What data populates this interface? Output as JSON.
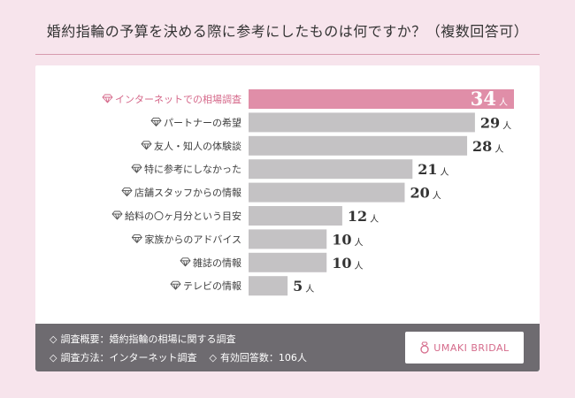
{
  "title": "婚約指輪の予算を決める際に参考にしたものは何ですか？（複数回答可）",
  "chart_data": {
    "type": "bar",
    "orientation": "horizontal",
    "categories": [
      "インターネットでの相場調査",
      "パートナーの希望",
      "友人・知人の体験談",
      "特に参考にしなかった",
      "店舗スタッフからの情報",
      "給料の〇ヶ月分という目安",
      "家族からのアドバイス",
      "雑誌の情報",
      "テレビの情報"
    ],
    "values": [
      34,
      29,
      28,
      21,
      20,
      12,
      10,
      10,
      5
    ],
    "unit": "人",
    "highlight_index": 0,
    "colors": {
      "highlight": "#e08ea8",
      "bar": "#c4c2c4",
      "highlight_label": "#d5688a",
      "label": "#3f3f3f",
      "value_highlight": "#ffffff",
      "value": "#333333"
    },
    "xlim": [
      0,
      34
    ]
  },
  "footer": {
    "line1": "調査概要：婚約指輪の相場に関する調査",
    "line2a": "調査方法：インターネット調査",
    "line2b": "有効回答数：106人",
    "bullet": "◇"
  },
  "logo": {
    "text": "UMAKI BRIDAL",
    "icon": "ring-icon"
  }
}
